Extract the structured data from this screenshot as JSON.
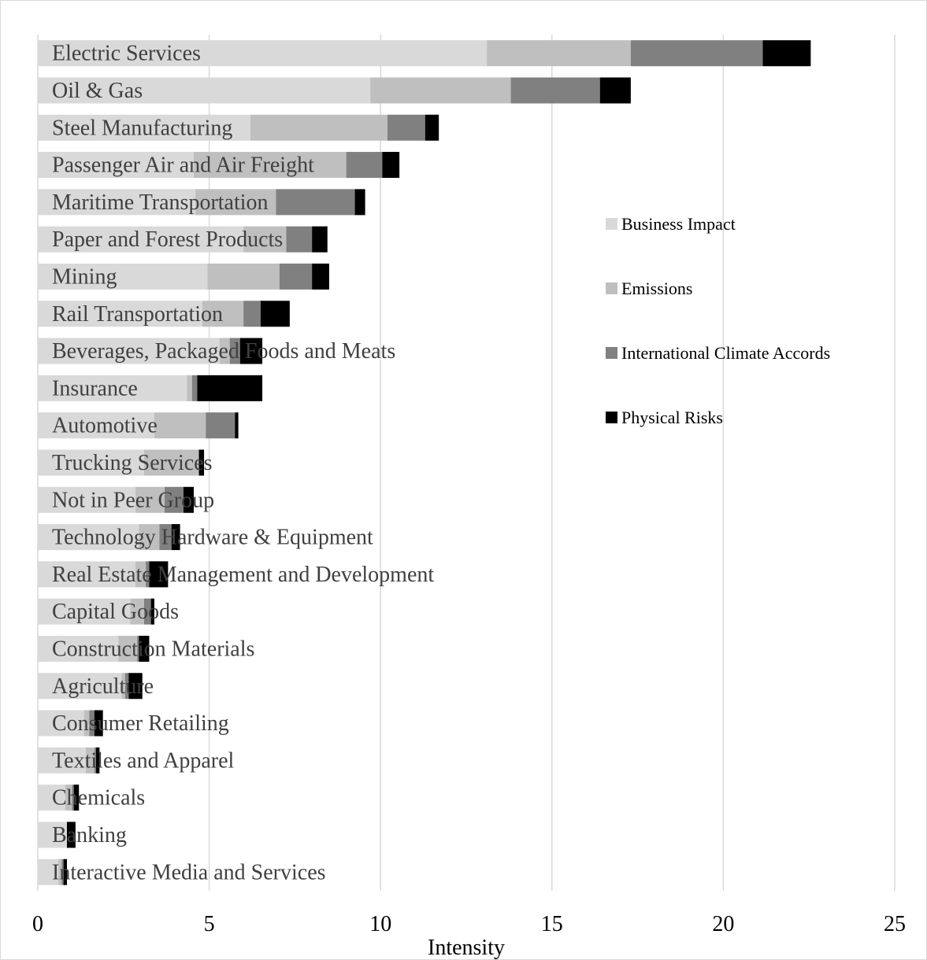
{
  "chart_data": {
    "type": "bar",
    "orientation": "horizontal",
    "stacked": true,
    "xlabel": "Intensity",
    "ylabel": "",
    "xlim": [
      0,
      25
    ],
    "xticks": [
      0,
      5,
      10,
      15,
      20,
      25
    ],
    "grid": "vertical",
    "legend_position": "right",
    "categories": [
      "Electric Services",
      "Oil & Gas",
      "Steel Manufacturing",
      "Passenger Air and Air Freight",
      "Maritime Transportation",
      "Paper and Forest Products",
      "Mining",
      "Rail Transportation",
      "Beverages, Packaged Foods and Meats",
      "Insurance",
      "Automotive",
      "Trucking Services",
      "Not in Peer Group",
      "Technology Hardware & Equipment",
      "Real Estate Management and Development",
      "Capital Goods",
      "Construction Materials",
      "Agriculture",
      "Consumer Retailing",
      "Textiles and Apparel",
      "Chemicals",
      "Banking",
      "Interactive Media and Services"
    ],
    "series": [
      {
        "name": "Business Impact",
        "color": "#d9d9d9",
        "values": [
          13.1,
          9.7,
          6.2,
          4.55,
          4.6,
          6.0,
          4.95,
          4.8,
          5.3,
          4.35,
          3.4,
          3.1,
          2.85,
          2.95,
          2.85,
          2.7,
          2.35,
          2.45,
          1.35,
          1.4,
          0.8,
          0.85,
          0.6
        ]
      },
      {
        "name": "Emissions",
        "color": "#bfbfbf",
        "values": [
          4.2,
          4.1,
          4.0,
          4.45,
          2.35,
          1.25,
          2.1,
          1.2,
          0.3,
          0.15,
          1.5,
          1.6,
          0.85,
          0.6,
          0.3,
          0.4,
          0.55,
          0.1,
          0.15,
          0.25,
          0.2,
          0.0,
          0.1
        ]
      },
      {
        "name": "International Climate Accords",
        "color": "#808080",
        "values": [
          3.85,
          2.6,
          1.1,
          1.05,
          2.3,
          0.75,
          0.95,
          0.5,
          0.3,
          0.15,
          0.85,
          0.0,
          0.55,
          0.35,
          0.1,
          0.2,
          0.05,
          0.1,
          0.15,
          0.05,
          0.05,
          0.0,
          0.05
        ]
      },
      {
        "name": "Physical Risks",
        "color": "#000000",
        "values": [
          1.4,
          0.9,
          0.4,
          0.5,
          0.3,
          0.45,
          0.5,
          0.85,
          0.65,
          1.9,
          0.1,
          0.15,
          0.3,
          0.25,
          0.55,
          0.1,
          0.3,
          0.4,
          0.25,
          0.1,
          0.15,
          0.25,
          0.1
        ]
      }
    ]
  }
}
